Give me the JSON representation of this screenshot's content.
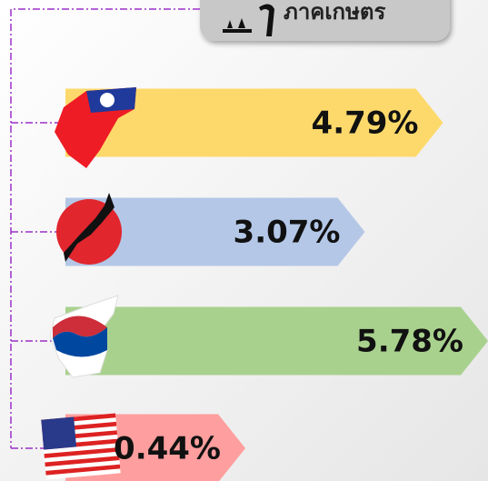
{
  "chart_data": {
    "type": "bar",
    "orientation": "horizontal",
    "title": "ภาคเกษตร",
    "categories": [
      null,
      null,
      null,
      null
    ],
    "values": [
      4.79,
      3.07,
      5.78,
      0.44
    ],
    "value_labels": [
      "4.79%",
      "3.07%",
      "5.78%",
      "0.44%"
    ],
    "colors": [
      "#fdd96b",
      "#b4c7e7",
      "#a9d18e",
      "#ff9e9e"
    ]
  }
}
